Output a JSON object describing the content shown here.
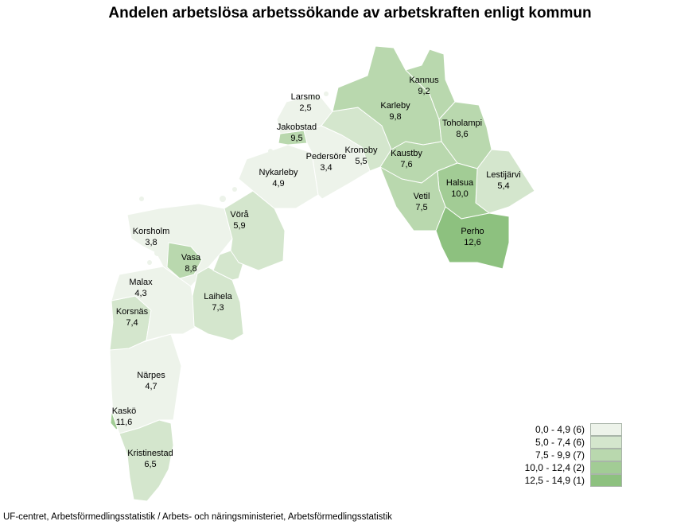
{
  "title": "Andelen arbetslösa arbetssökande av arbetskraften enligt kommun",
  "source": "UF-centret, Arbetsförmedlingsstatistik / Arbets- och näringsministeriet, Arbetsförmedlingsstatistik",
  "legend": [
    {
      "label": "0,0 - 4,9 (6)",
      "color": "#edf3ea"
    },
    {
      "label": "5,0 - 7,4 (6)",
      "color": "#d4e6cd"
    },
    {
      "label": "7,5 - 9,9 (7)",
      "color": "#b9d8ae"
    },
    {
      "label": "10,0 - 12,4 (2)",
      "color": "#a2cc95"
    },
    {
      "label": "12,5 - 14,9 (1)",
      "color": "#8dc17f"
    }
  ],
  "municipalities": [
    {
      "name": "Kannus",
      "value": "9,2",
      "class": 2
    },
    {
      "name": "Larsmo",
      "value": "2,5",
      "class": 0
    },
    {
      "name": "Karleby",
      "value": "9,8",
      "class": 2
    },
    {
      "name": "Jakobstad",
      "value": "9,5",
      "class": 2
    },
    {
      "name": "Toholampi",
      "value": "8,6",
      "class": 2
    },
    {
      "name": "Kronoby",
      "value": "5,5",
      "class": 1
    },
    {
      "name": "Pedersöre",
      "value": "3,4",
      "class": 0
    },
    {
      "name": "Kaustby",
      "value": "7,6",
      "class": 2
    },
    {
      "name": "Nykarleby",
      "value": "4,9",
      "class": 0
    },
    {
      "name": "Halsua",
      "value": "10,0",
      "class": 3
    },
    {
      "name": "Lestijärvi",
      "value": "5,4",
      "class": 1
    },
    {
      "name": "Vetil",
      "value": "7,5",
      "class": 2
    },
    {
      "name": "Vörå",
      "value": "5,9",
      "class": 1
    },
    {
      "name": "Perho",
      "value": "12,6",
      "class": 4
    },
    {
      "name": "Korsholm",
      "value": "3,8",
      "class": 0
    },
    {
      "name": "Vasa",
      "value": "8,8",
      "class": 2
    },
    {
      "name": "Malax",
      "value": "4,3",
      "class": 0
    },
    {
      "name": "Laihela",
      "value": "7,3",
      "class": 1
    },
    {
      "name": "Korsnäs",
      "value": "7,4",
      "class": 1
    },
    {
      "name": "Närpes",
      "value": "4,7",
      "class": 0
    },
    {
      "name": "Kaskö",
      "value": "11,6",
      "class": 3
    },
    {
      "name": "Kristinestad",
      "value": "6,5",
      "class": 1
    }
  ]
}
